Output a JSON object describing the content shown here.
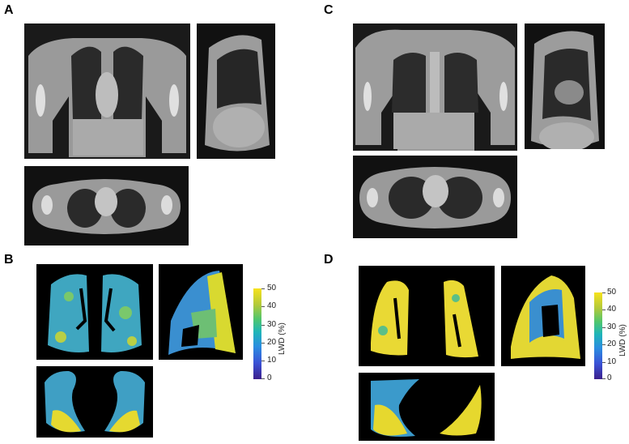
{
  "panels": {
    "a": "A",
    "b": "B",
    "c": "C",
    "d": "D"
  },
  "colorbar_b": {
    "title": "LWD (%)",
    "ticks": [
      "50",
      "40",
      "30",
      "20",
      "10",
      "0"
    ]
  },
  "colorbar_d": {
    "title": "LWD (%)",
    "ticks": [
      "50",
      "40",
      "30",
      "20",
      "10",
      "0"
    ]
  },
  "colors": {
    "map_low": "#3b1f8c",
    "map_mid": "#1fb5b8",
    "map_high": "#f7e21c"
  }
}
